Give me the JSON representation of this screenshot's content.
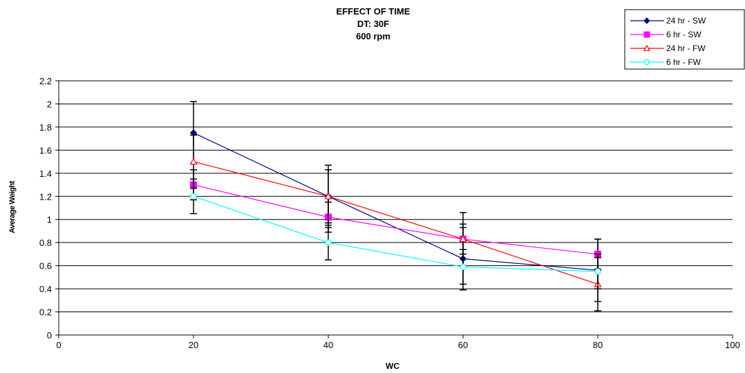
{
  "chart_data": {
    "type": "line",
    "title": [
      "EFFECT OF TIME",
      "DT: 30F",
      "600 rpm"
    ],
    "xlabel": "WC",
    "ylabel": "Average Weight",
    "xlim": [
      0,
      100
    ],
    "ylim": [
      0,
      2.2
    ],
    "xticks": [
      "0",
      "20",
      "40",
      "60",
      "80",
      "100"
    ],
    "yticks": [
      "0",
      "0.2",
      "0.4",
      "0.6",
      "0.8",
      "1",
      "1.2",
      "1.4",
      "1.6",
      "1.8",
      "2",
      "2.2"
    ],
    "grid": "horizontal",
    "legend_position": "top-right",
    "series": [
      {
        "name": "24 hr - SW",
        "color": "#000080",
        "marker": "diamond",
        "x": [
          20,
          40,
          60,
          80
        ],
        "y": [
          1.75,
          1.2,
          0.66,
          0.56
        ],
        "error": [
          0.27,
          0.27,
          0.27,
          0.27
        ]
      },
      {
        "name": "6 hr - SW",
        "color": "#ff00ff",
        "marker": "square",
        "x": [
          20,
          40,
          60,
          80
        ],
        "y": [
          1.3,
          1.02,
          0.83,
          0.7
        ],
        "error": [
          0.13,
          0.13,
          0.13,
          0.13
        ]
      },
      {
        "name": "24 hr - FW",
        "color": "#ff0000",
        "marker": "triangle",
        "x": [
          20,
          40,
          60,
          80
        ],
        "y": [
          1.5,
          1.2,
          0.83,
          0.44
        ],
        "error": [
          0.23,
          0.23,
          0.23,
          0.23
        ]
      },
      {
        "name": "6 hr - FW",
        "color": "#00ffff",
        "marker": "circle",
        "x": [
          20,
          40,
          60,
          80
        ],
        "y": [
          1.2,
          0.8,
          0.59,
          0.55
        ],
        "error": [
          0.15,
          0.15,
          0.15,
          0.15
        ]
      }
    ]
  }
}
